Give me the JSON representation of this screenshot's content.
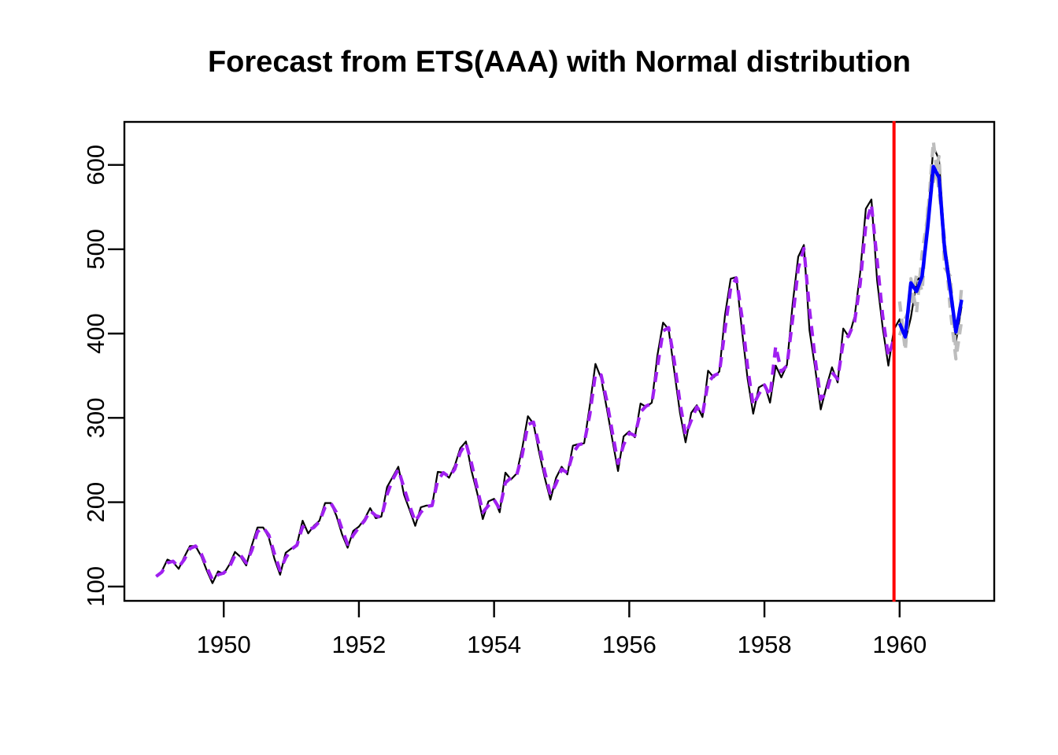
{
  "chart_data": {
    "type": "line",
    "title": "Forecast from ETS(AAA) with Normal distribution",
    "xlabel": "",
    "ylabel": "",
    "grid": false,
    "legend": false,
    "frequency": 12,
    "xlim": [
      1948.53,
      1961.4
    ],
    "ylim": [
      83,
      651
    ],
    "x_ticks": [
      1950,
      1952,
      1954,
      1956,
      1958,
      1960
    ],
    "y_ticks": [
      100,
      200,
      300,
      400,
      500,
      600
    ],
    "axis_color": "#000000",
    "series": [
      {
        "name": "actual-observations",
        "start": 1960,
        "color": "#000000",
        "width": 2.2,
        "dash": null,
        "values": []
      },
      {
        "name": "observed",
        "start": 1949,
        "color": "#000000",
        "width": 2.2,
        "dash": null,
        "values": [
          112,
          118,
          132,
          129,
          121,
          135,
          148,
          148,
          136,
          119,
          104,
          118,
          115,
          126,
          141,
          135,
          125,
          149,
          170,
          170,
          158,
          133,
          114,
          140,
          145,
          150,
          178,
          163,
          172,
          178,
          199,
          199,
          184,
          162,
          146,
          166,
          171,
          180,
          193,
          181,
          183,
          218,
          230,
          242,
          209,
          191,
          172,
          194,
          196,
          196,
          236,
          235,
          229,
          243,
          264,
          272,
          237,
          211,
          180,
          201,
          204,
          188,
          235,
          227,
          234,
          264,
          302,
          293,
          259,
          229,
          203,
          229,
          242,
          233,
          267,
          269,
          270,
          315,
          364,
          347,
          312,
          274,
          237,
          278,
          284,
          277,
          317,
          313,
          318,
          374,
          413,
          405,
          355,
          306,
          271,
          306,
          315,
          301,
          356,
          348,
          355,
          422,
          465,
          467,
          404,
          347,
          305,
          336,
          340,
          318,
          362,
          348,
          363,
          435,
          491,
          505,
          404,
          359,
          310,
          337,
          360,
          342,
          406,
          396,
          420,
          472,
          548,
          559,
          463,
          407,
          362,
          405,
          417,
          391,
          419,
          461,
          472,
          535,
          622,
          606,
          508,
          461,
          390,
          432
        ]
      },
      {
        "name": "fitted-values",
        "start": 1949,
        "color": "#A020F0",
        "width": 4.2,
        "dash": "13 9",
        "values": [
          112,
          117,
          128,
          130,
          123,
          132,
          145,
          148,
          139,
          123,
          108,
          114,
          116,
          123,
          137,
          137,
          128,
          143,
          165,
          170,
          161,
          139,
          119,
          134,
          144,
          149,
          171,
          167,
          170,
          177,
          194,
          199,
          188,
          168,
          150,
          161,
          170,
          178,
          190,
          184,
          182,
          209,
          227,
          239,
          217,
          196,
          177,
          188,
          195,
          196,
          226,
          235,
          230,
          239,
          259,
          270,
          246,
          217,
          188,
          196,
          203,
          192,
          223,
          229,
          232,
          256,
          292,
          295,
          267,
          236,
          209,
          222,
          239,
          235,
          258,
          268,
          270,
          304,
          352,
          351,
          321,
          283,
          246,
          268,
          282,
          279,
          307,
          314,
          317,
          360,
          403,
          407,
          367,
          318,
          280,
          297,
          313,
          304,
          342,
          350,
          353,
          405,
          454,
          466,
          420,
          361,
          315,
          328,
          339,
          326,
          385,
          355,
          362,
          417,
          477,
          501,
          429,
          370,
          322,
          330,
          354,
          346,
          390,
          398,
          414,
          459,
          529,
          553,
          487,
          421,
          373,
          394
        ]
      },
      {
        "name": "simulated-path-1",
        "start": 1960,
        "color": "#BDBDBD",
        "width": 4.2,
        "dash": "13 9",
        "values": [
          438,
          380,
          465,
          425,
          495,
          540,
          628,
          568,
          512,
          428,
          370,
          415
        ]
      },
      {
        "name": "simulated-path-2",
        "start": 1960,
        "color": "#BDBDBD",
        "width": 4.2,
        "dash": "13 9",
        "values": [
          398,
          418,
          432,
          470,
          450,
          548,
          580,
          610,
          478,
          468,
          378,
          455
        ]
      },
      {
        "name": "forecast-mean",
        "start": 1960,
        "color": "#0000FF",
        "width": 4.5,
        "dash": null,
        "values": [
          412,
          396,
          460,
          450,
          468,
          527,
          598,
          585,
          500,
          452,
          402,
          440
        ]
      }
    ],
    "train_end_line": {
      "x": 1959.917,
      "color": "#FF0000",
      "width": 4
    }
  }
}
